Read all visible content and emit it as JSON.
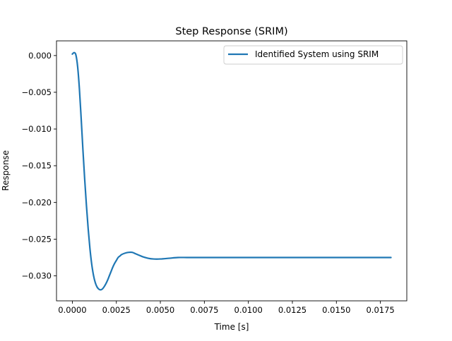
{
  "chart_data": {
    "type": "line",
    "title": "Step Response (SRIM)",
    "xlabel": "Time [s]",
    "ylabel": "Response",
    "xlim": [
      -0.0009,
      0.019
    ],
    "ylim": [
      -0.0334,
      0.002
    ],
    "grid": false,
    "legend_position": "top-right",
    "x_ticks": [
      0.0,
      0.0025,
      0.005,
      0.0075,
      0.01,
      0.0125,
      0.015,
      0.0175
    ],
    "x_tick_labels": [
      "0.0000",
      "0.0025",
      "0.0050",
      "0.0075",
      "0.0100",
      "0.0125",
      "0.0150",
      "0.0175"
    ],
    "y_ticks": [
      0.0,
      -0.005,
      -0.01,
      -0.015,
      -0.02,
      -0.025,
      -0.03
    ],
    "y_tick_labels": [
      "0.000",
      "−0.005",
      "−0.010",
      "−0.015",
      "−0.020",
      "−0.025",
      "−0.030"
    ],
    "series": [
      {
        "name": "Identified System using SRIM",
        "color": "#1f77b4",
        "x": [
          0.0,
          0.0001,
          0.0002,
          0.0003,
          0.0004,
          0.0005,
          0.0006,
          0.0007,
          0.0008,
          0.0009,
          0.001,
          0.0011,
          0.0012,
          0.0013,
          0.0014,
          0.0015,
          0.0016,
          0.0017,
          0.0018,
          0.0019,
          0.002,
          0.0021,
          0.0022,
          0.0023,
          0.0024,
          0.0025,
          0.0026,
          0.0027,
          0.0028,
          0.003,
          0.0032,
          0.0034,
          0.0036,
          0.0038,
          0.004,
          0.0043,
          0.0046,
          0.005,
          0.0055,
          0.006,
          0.0065,
          0.007,
          0.008,
          0.009,
          0.01,
          0.012,
          0.014,
          0.016,
          0.0181
        ],
        "y": [
          0.0002,
          0.0004,
          0.0001,
          -0.0015,
          -0.0045,
          -0.0085,
          -0.0128,
          -0.0168,
          -0.0204,
          -0.0236,
          -0.0263,
          -0.0284,
          -0.0299,
          -0.0309,
          -0.0315,
          -0.0318,
          -0.0319,
          -0.0318,
          -0.0315,
          -0.0311,
          -0.0306,
          -0.03,
          -0.0294,
          -0.0288,
          -0.0283,
          -0.0279,
          -0.0275,
          -0.0273,
          -0.0271,
          -0.0269,
          -0.0268,
          -0.0268,
          -0.027,
          -0.0272,
          -0.0274,
          -0.0276,
          -0.0277,
          -0.0277,
          -0.0276,
          -0.0275,
          -0.0275,
          -0.0275,
          -0.0275,
          -0.0275,
          -0.0275,
          -0.0275,
          -0.0275,
          -0.0275,
          -0.0275
        ]
      }
    ]
  }
}
